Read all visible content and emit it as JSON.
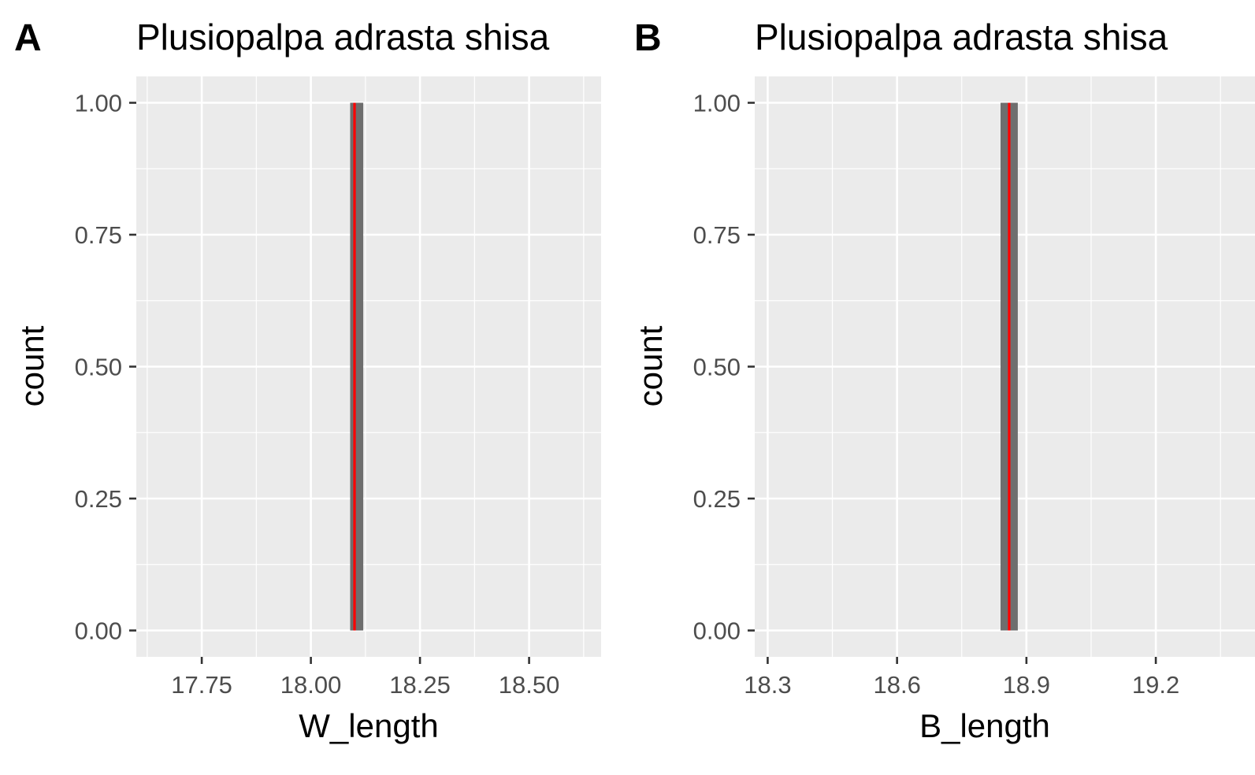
{
  "colors": {
    "panel_background": "#EBEBEB",
    "grid_major": "#FFFFFF",
    "grid_minor": "#F5F5F5",
    "bar_fill": "#6E6E6E",
    "mean_line": "#FF0000",
    "tick_text": "#4D4D4D",
    "text": "#000000"
  },
  "chart_data": [
    {
      "type": "bar",
      "panel_tag": "A",
      "title": "Plusiopalpa adrasta shisa",
      "xlabel": "W_length",
      "ylabel": "count",
      "xlim": [
        17.6,
        18.665
      ],
      "ylim": [
        -0.05,
        1.05
      ],
      "xticks": [
        17.75,
        18.0,
        18.25,
        18.5
      ],
      "xtick_labels": [
        "17.75",
        "18.00",
        "18.25",
        "18.50"
      ],
      "yticks": [
        0,
        0.25,
        0.5,
        0.75,
        1.0
      ],
      "ytick_labels": [
        "0.00",
        "0.25",
        "0.50",
        "0.75",
        "1.00"
      ],
      "grid": true,
      "bars": [
        {
          "x_start": 18.09,
          "x_end": 18.12,
          "count": 1
        }
      ],
      "vline": {
        "x": 18.1,
        "color": "red"
      }
    },
    {
      "type": "bar",
      "panel_tag": "B",
      "title": "Plusiopalpa adrasta shisa",
      "xlabel": "B_length",
      "ylabel": "count",
      "xlim": [
        18.27,
        19.43
      ],
      "ylim": [
        -0.05,
        1.05
      ],
      "xticks": [
        18.3,
        18.6,
        18.9,
        19.2
      ],
      "xtick_labels": [
        "18.3",
        "18.6",
        "18.9",
        "19.2"
      ],
      "yticks": [
        0,
        0.25,
        0.5,
        0.75,
        1.0
      ],
      "ytick_labels": [
        "0.00",
        "0.25",
        "0.50",
        "0.75",
        "1.00"
      ],
      "grid": true,
      "bars": [
        {
          "x_start": 18.84,
          "x_end": 18.88,
          "count": 1
        }
      ],
      "vline": {
        "x": 18.86,
        "color": "red"
      }
    }
  ]
}
